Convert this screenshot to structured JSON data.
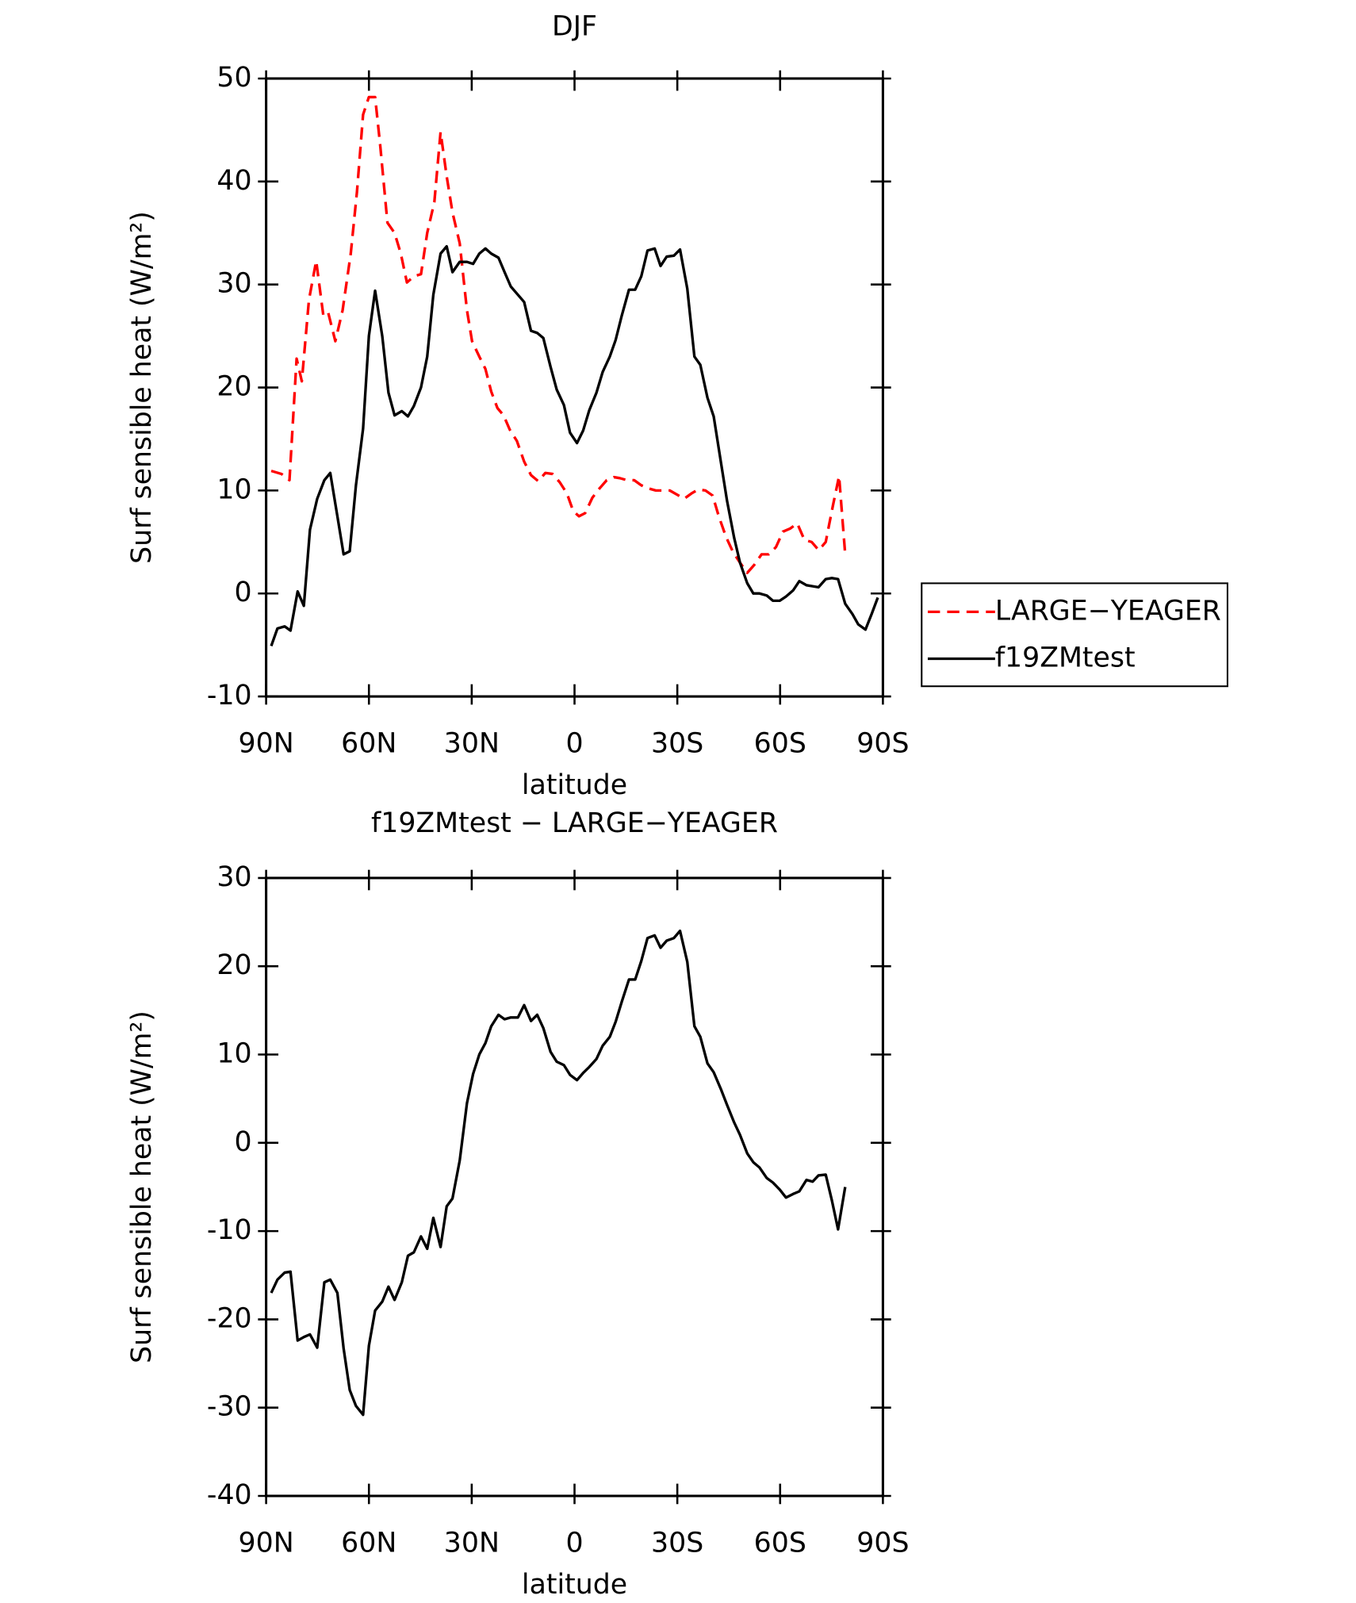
{
  "chart_data": [
    {
      "type": "line",
      "title": "DJF",
      "xlabel": "latitude",
      "ylabel": "Surf sensible heat (W/m²)",
      "xlim": [
        90,
        -90
      ],
      "xticks": [
        {
          "value": 90,
          "label": "90N"
        },
        {
          "value": 60,
          "label": "60N"
        },
        {
          "value": 30,
          "label": "30N"
        },
        0,
        {
          "value": -30,
          "label": "30S"
        },
        {
          "value": -60,
          "label": "60S"
        },
        {
          "value": -90,
          "label": "90S"
        }
      ],
      "ylim": [
        -10,
        50
      ],
      "yticks": [
        -10,
        0,
        10,
        20,
        30,
        40,
        50
      ],
      "legend": "right",
      "series": [
        {
          "name": "LARGE−YEAGER",
          "color": "#ff0000",
          "linestyle": "dashed",
          "x": [
            88.5,
            85.5,
            83.2,
            81.1,
            79.6,
            77.5,
            75.4,
            73.3,
            71.9,
            69.8,
            67.7,
            65.3,
            63.5,
            61.7,
            60.0,
            58.2,
            56.7,
            54.6,
            52.5,
            50.7,
            48.9,
            46.9,
            44.8,
            43.0,
            40.9,
            39.1,
            37.3,
            35.6,
            33.5,
            31.4,
            29.9,
            27.8,
            26.0,
            24.3,
            22.5,
            20.7,
            18.9,
            16.8,
            14.7,
            12.7,
            10.6,
            8.5,
            6.4,
            4.3,
            2.2,
            0.4,
            -1.3,
            -3.1,
            -5.2,
            -7.3,
            -9.4,
            -11.5,
            -13.2,
            -15.3,
            -17.4,
            -19.5,
            -21.6,
            -23.7,
            -25.7,
            -27.8,
            -29.9,
            -32.0,
            -34.1,
            -36.1,
            -38.2,
            -40.3,
            -42.1,
            -44.2,
            -46.3,
            -48.3,
            -50.4,
            -52.5,
            -54.6,
            -56.7,
            -58.8,
            -60.8,
            -62.9,
            -65.0,
            -67.1,
            -69.2,
            -71.3,
            -73.3,
            -75.4,
            -77.2,
            -79.0
          ],
          "values": [
            11.9,
            11.6,
            11.0,
            22.8,
            20.6,
            28.5,
            32.3,
            27.0,
            27.3,
            24.5,
            27.5,
            33,
            39,
            46.5,
            48.2,
            48.2,
            43.5,
            36,
            35,
            33,
            30.2,
            30.8,
            31,
            35,
            38,
            44.8,
            40.5,
            37,
            34,
            27.5,
            24.5,
            23,
            21.8,
            19.6,
            18,
            17.3,
            15.9,
            14.8,
            12.8,
            11.5,
            10.9,
            11.7,
            11.6,
            10.8,
            9.7,
            8.0,
            7.5,
            7.8,
            9.3,
            10.2,
            11.0,
            11.3,
            11.2,
            11.0,
            11.0,
            10.5,
            10.2,
            10.0,
            10.0,
            10.0,
            9.6,
            9.2,
            9.7,
            10.1,
            10.0,
            9.5,
            7.5,
            5.5,
            4.0,
            3.0,
            2.0,
            2.8,
            3.8,
            3.8,
            4.5,
            6.0,
            6.3,
            6.8,
            5.2,
            5.0,
            4.2,
            5.0,
            8.5,
            11.4,
            3.8
          ]
        },
        {
          "name": "f19ZMtest",
          "color": "#000000",
          "linestyle": "solid",
          "x": [
            88.5,
            86.7,
            84.6,
            82.9,
            80.8,
            79.0,
            77.2,
            75.1,
            73.0,
            71.3,
            69.2,
            67.4,
            65.6,
            63.8,
            61.7,
            60.0,
            58.2,
            56.1,
            54.3,
            52.5,
            50.4,
            48.6,
            46.9,
            44.8,
            43.0,
            41.2,
            39.1,
            37.3,
            35.6,
            33.5,
            31.4,
            29.6,
            27.8,
            26.0,
            24.3,
            22.2,
            20.4,
            18.6,
            16.5,
            14.7,
            12.7,
            10.9,
            9.1,
            7.0,
            5.2,
            3.1,
            1.3,
            -0.7,
            -2.5,
            -4.3,
            -6.4,
            -8.2,
            -10.3,
            -12.0,
            -13.8,
            -15.9,
            -17.7,
            -19.5,
            -21.3,
            -23.4,
            -25.1,
            -26.9,
            -29.0,
            -30.8,
            -32.9,
            -35.0,
            -36.7,
            -38.8,
            -40.6,
            -42.7,
            -44.5,
            -46.6,
            -48.3,
            -50.4,
            -52.2,
            -54.0,
            -56.1,
            -57.9,
            -59.9,
            -61.7,
            -63.8,
            -65.6,
            -67.7,
            -69.5,
            -71.2,
            -73.3,
            -75.1,
            -76.9,
            -79.0,
            -81.1,
            -82.8,
            -84.9,
            -86.7,
            -88.5
          ],
          "values": [
            -5.1,
            -3.4,
            -3.2,
            -3.6,
            0.2,
            -1.2,
            6.2,
            9.2,
            11.0,
            11.7,
            7.5,
            3.8,
            4.1,
            10.5,
            16,
            25,
            29.4,
            25,
            19.5,
            17.3,
            17.7,
            17.2,
            18.2,
            20,
            23,
            29,
            33,
            33.7,
            31.2,
            32.2,
            32.2,
            32,
            33,
            33.5,
            33,
            32.6,
            31.2,
            29.8,
            29,
            28.3,
            25.5,
            25.3,
            24.8,
            22,
            19.8,
            18.3,
            15.6,
            14.6,
            15.8,
            17.8,
            19.5,
            21.5,
            23,
            24.6,
            27,
            29.5,
            29.5,
            30.8,
            33.3,
            33.5,
            31.8,
            32.7,
            32.8,
            33.4,
            29.6,
            23,
            22.2,
            19,
            17.2,
            12.8,
            9,
            5.4,
            3,
            1,
            0,
            0,
            -0.2,
            -0.7,
            -0.7,
            -0.3,
            0.3,
            1.2,
            0.8,
            0.7,
            0.6,
            1.4,
            1.5,
            1.4,
            -1.0,
            -2.0,
            -3.0,
            -3.5,
            -2.0,
            -0.4
          ]
        }
      ]
    },
    {
      "type": "line",
      "title": "f19ZMtest − LARGE−YEAGER",
      "xlabel": "latitude",
      "ylabel": "Surf sensible heat (W/m²)",
      "xlim": [
        90,
        -90
      ],
      "xticks": [
        {
          "value": 90,
          "label": "90N"
        },
        {
          "value": 60,
          "label": "60N"
        },
        {
          "value": 30,
          "label": "30N"
        },
        0,
        {
          "value": -30,
          "label": "30S"
        },
        {
          "value": -60,
          "label": "60S"
        },
        {
          "value": -90,
          "label": "90S"
        }
      ],
      "ylim": [
        -40,
        30
      ],
      "yticks": [
        -40,
        -30,
        -20,
        -10,
        0,
        10,
        20,
        30
      ],
      "series": [
        {
          "color": "#000000",
          "linestyle": "solid",
          "x": [
            88.5,
            86.7,
            84.6,
            82.9,
            80.8,
            79.0,
            77.2,
            75.1,
            73.0,
            71.3,
            69.2,
            67.4,
            65.6,
            63.8,
            61.7,
            60.0,
            58.2,
            56.1,
            54.3,
            52.5,
            50.4,
            48.6,
            46.9,
            44.8,
            43.0,
            41.2,
            39.1,
            37.3,
            35.6,
            33.5,
            31.4,
            29.6,
            27.8,
            26.0,
            24.3,
            22.2,
            20.4,
            18.6,
            16.5,
            14.7,
            12.7,
            10.9,
            9.1,
            7.0,
            5.2,
            3.1,
            1.3,
            -0.7,
            -2.5,
            -4.3,
            -6.4,
            -8.2,
            -10.3,
            -12.0,
            -13.8,
            -15.9,
            -17.7,
            -19.5,
            -21.3,
            -23.4,
            -25.1,
            -26.9,
            -29.0,
            -30.8,
            -32.9,
            -35.0,
            -36.7,
            -38.8,
            -40.6,
            -42.7,
            -44.5,
            -46.6,
            -48.3,
            -50.4,
            -52.2,
            -54.0,
            -56.1,
            -57.9,
            -59.9,
            -61.7,
            -63.8,
            -65.6,
            -67.7,
            -69.5,
            -71.2,
            -73.3,
            -75.1,
            -76.9,
            -79.0
          ],
          "values": [
            -17,
            -15.5,
            -14.7,
            -14.6,
            -22.4,
            -22,
            -21.7,
            -23.2,
            -15.8,
            -15.5,
            -17,
            -23.3,
            -28,
            -29.8,
            -30.8,
            -23,
            -19,
            -18,
            -16.3,
            -17.8,
            -15.8,
            -12.8,
            -12.4,
            -10.6,
            -12,
            -8.5,
            -11.8,
            -7.2,
            -6.3,
            -2,
            4.5,
            7.8,
            10,
            11.3,
            13.2,
            14.5,
            14,
            14.2,
            14.2,
            15.6,
            13.8,
            14.5,
            13,
            10.3,
            9.2,
            8.8,
            7.7,
            7.1,
            7.9,
            8.6,
            9.5,
            11,
            12,
            13.7,
            16,
            18.5,
            18.5,
            20.6,
            23.2,
            23.5,
            22.1,
            22.9,
            23.2,
            24,
            20.5,
            13.2,
            12,
            9,
            8,
            6.1,
            4.3,
            2.3,
            0.9,
            -1.2,
            -2.2,
            -2.8,
            -4,
            -4.5,
            -5.3,
            -6.2,
            -5.8,
            -5.5,
            -4.2,
            -4.4,
            -3.7,
            -3.6,
            -6.5,
            -9.8,
            -5
          ]
        }
      ]
    }
  ]
}
